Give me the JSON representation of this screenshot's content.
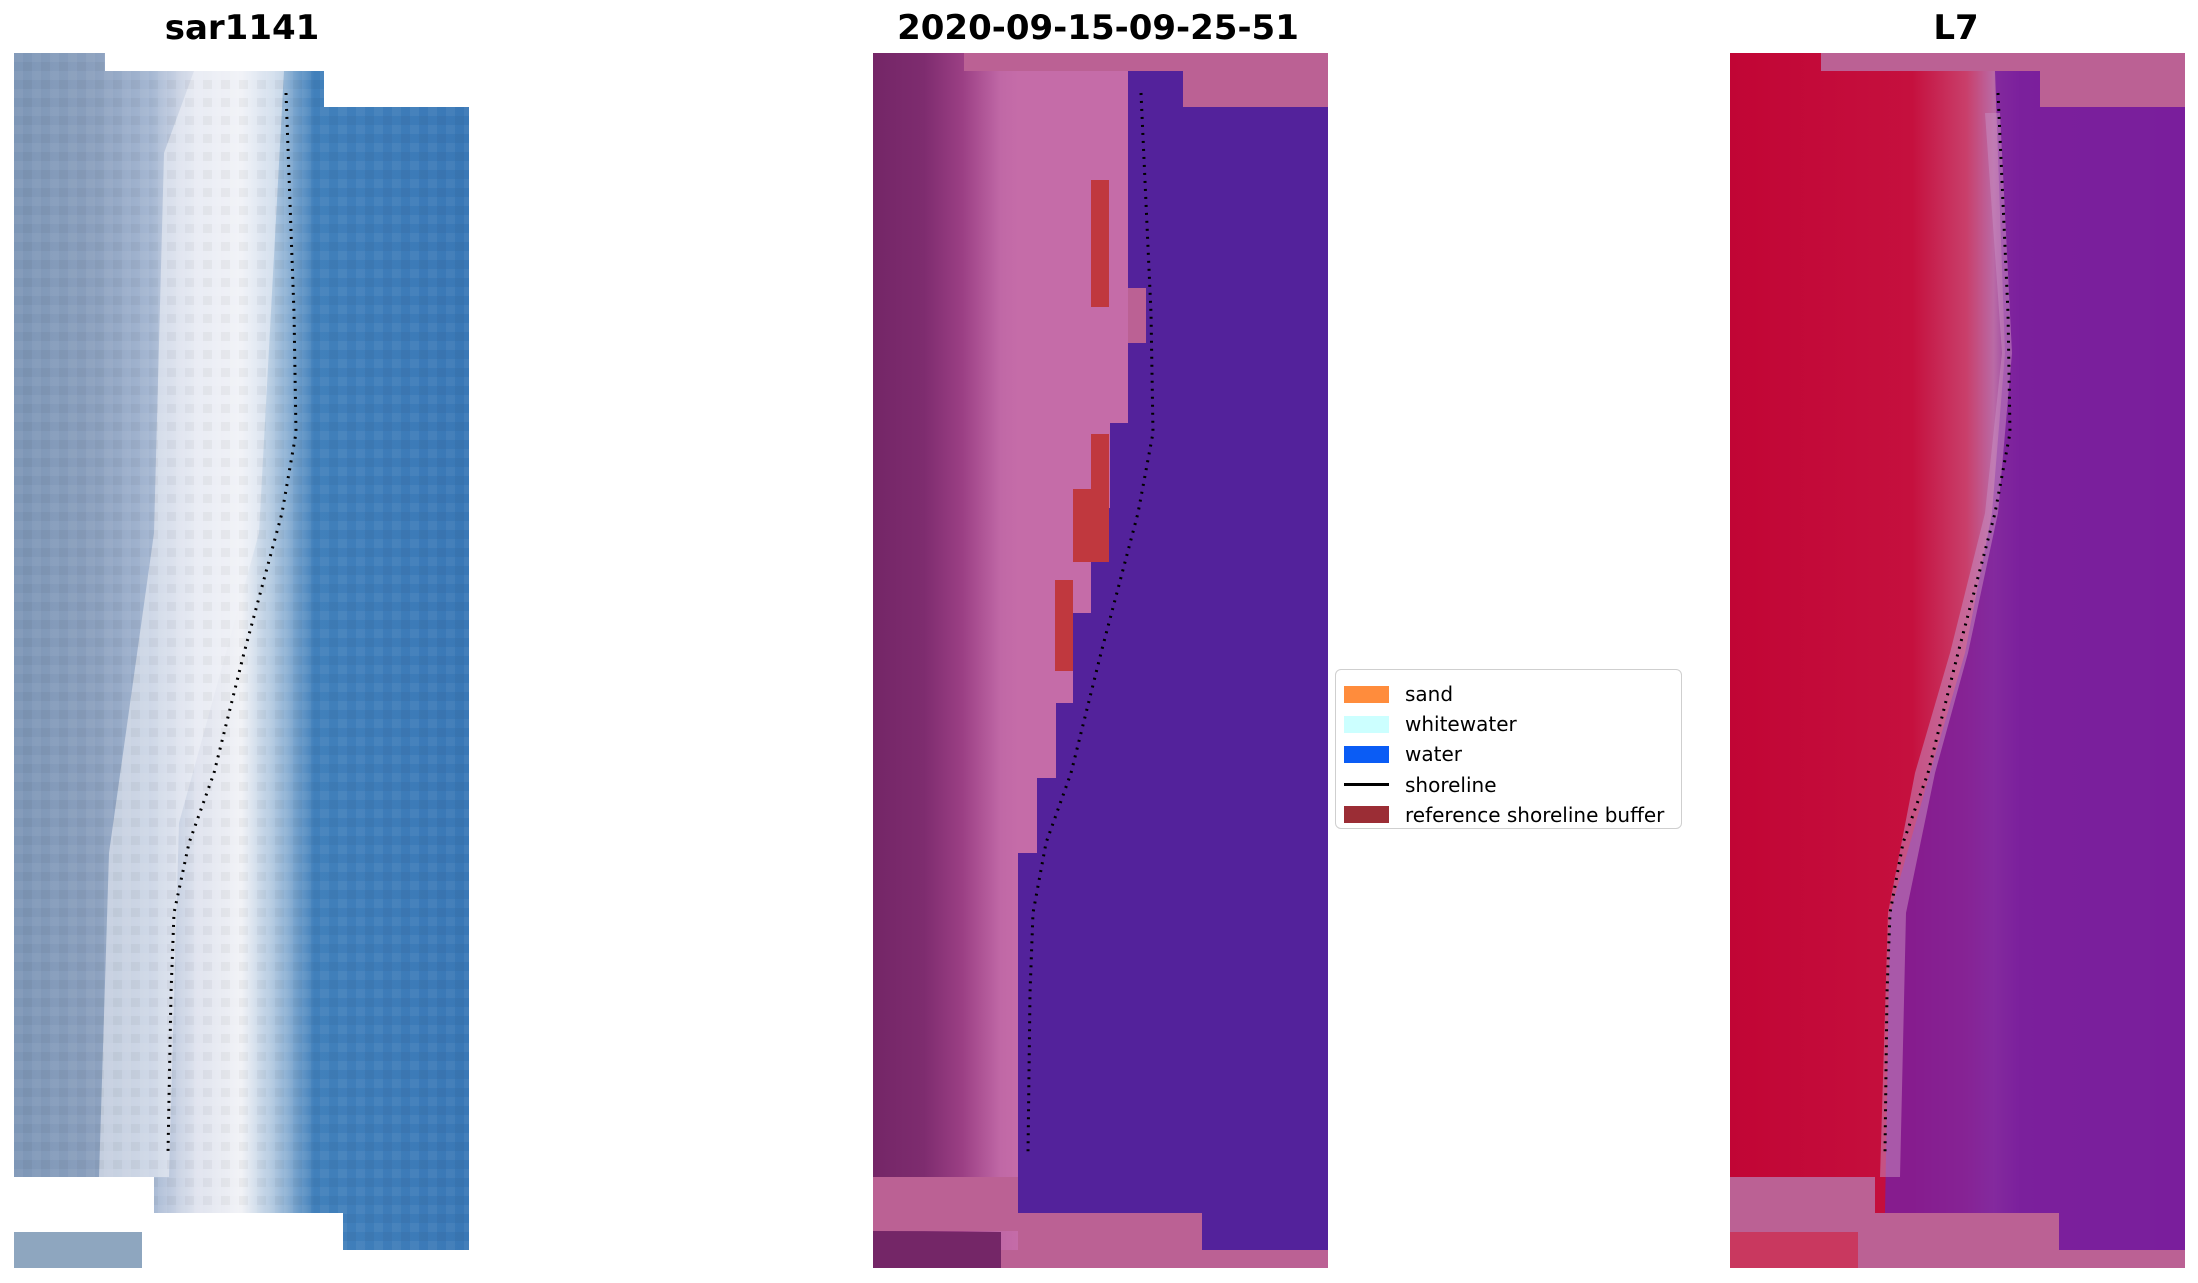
{
  "panels": {
    "left": {
      "title": "sar1141"
    },
    "middle": {
      "title": "2020-09-15-09-25-51"
    },
    "right": {
      "title": "L7"
    }
  },
  "legend": {
    "items": [
      {
        "label": "sand",
        "color": "#ff8c3c",
        "kind": "patch"
      },
      {
        "label": "whitewater",
        "color": "#ccffff",
        "kind": "patch"
      },
      {
        "label": "water",
        "color": "#0a5cf5",
        "kind": "patch"
      },
      {
        "label": "shoreline",
        "color": "#000000",
        "kind": "line"
      },
      {
        "label": "reference shoreline buffer",
        "color": "#9b2d35",
        "kind": "patch"
      }
    ]
  },
  "colors": {
    "rgb_sand": "#8c9cb4",
    "rgb_whitewater": "#eef0f6",
    "rgb_water": "#3a78b6",
    "classified_land": "#7a2a6c",
    "classified_beach": "#b85a9c",
    "classified_water": "#53229b",
    "classified_nodata": "#bb6194",
    "buffer": "#c0383e",
    "ndwi_land": "#c10535",
    "ndwi_water": "#7b1f9c",
    "ndwi_nodata": "#bb6194"
  }
}
